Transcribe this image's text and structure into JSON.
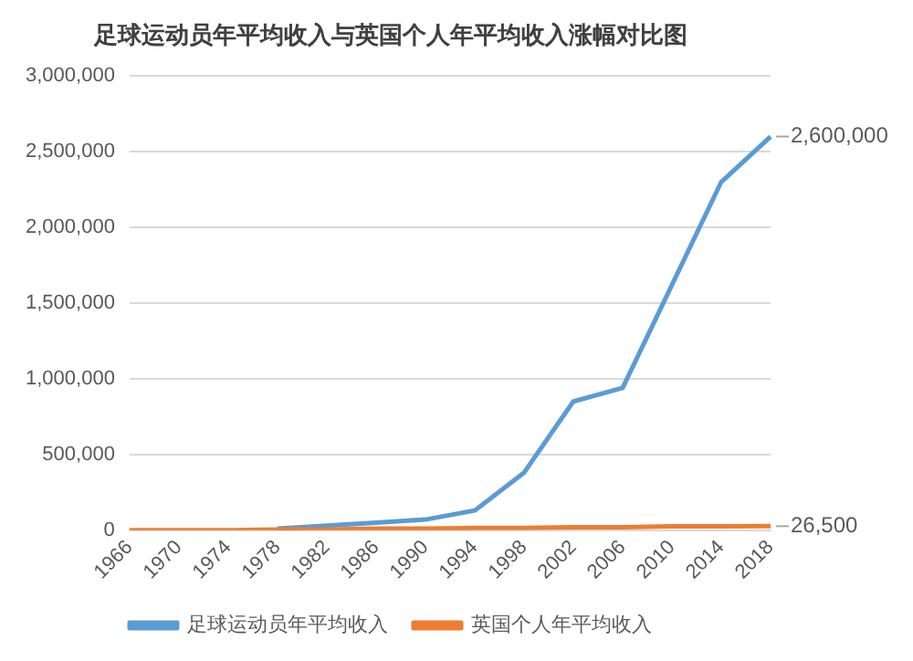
{
  "chart_data": {
    "type": "line",
    "title": "足球运动员年平均收入与英国个人年平均收入涨幅对比图",
    "categories": [
      "1966",
      "1970",
      "1974",
      "1978",
      "1982",
      "1986",
      "1990",
      "1994",
      "1998",
      "2002",
      "2006",
      "2010",
      "2014",
      "2018"
    ],
    "series": [
      {
        "name": "足球运动员年平均收入",
        "color": "#5b9bd5",
        "values": [
          null,
          null,
          null,
          10000,
          30000,
          50000,
          70000,
          130000,
          380000,
          850000,
          940000,
          1620000,
          2300000,
          2600000
        ],
        "value_labels": [
          null,
          null,
          null,
          null,
          null,
          null,
          null,
          null,
          null,
          null,
          null,
          null,
          null,
          "2,600,000"
        ]
      },
      {
        "name": "英国个人年平均收入",
        "color": "#ed7d31",
        "values": [
          0,
          0,
          0,
          5000,
          5000,
          10000,
          10000,
          15000,
          15000,
          20000,
          20000,
          25000,
          25000,
          26500
        ],
        "value_labels": [
          null,
          null,
          null,
          null,
          null,
          null,
          null,
          null,
          null,
          null,
          null,
          null,
          null,
          "26,500"
        ]
      }
    ],
    "ylim": [
      0,
      3000000
    ],
    "yticks": [
      {
        "value": 0,
        "label": "0"
      },
      {
        "value": 500000,
        "label": "500,000"
      },
      {
        "value": 1000000,
        "label": "1,000,000"
      },
      {
        "value": 1500000,
        "label": "1,500,000"
      },
      {
        "value": 2000000,
        "label": "2,000,000"
      },
      {
        "value": 2500000,
        "label": "2,500,000"
      },
      {
        "value": 3000000,
        "label": "3,000,000"
      }
    ],
    "grid": "y",
    "legend": "bottom",
    "marker": "none",
    "line_style": "solid"
  }
}
